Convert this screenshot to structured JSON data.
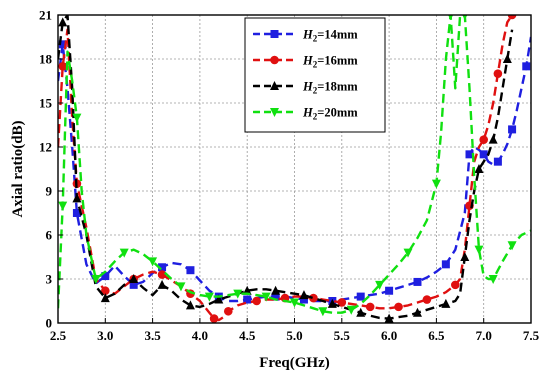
{
  "chart_data": {
    "type": "line",
    "xlabel": "Freq(GHz)",
    "ylabel": "Axial ratio(dB)",
    "xlim": [
      2.5,
      7.5
    ],
    "ylim": [
      0,
      21
    ],
    "xticks": [
      "2.5",
      "3.0",
      "3.5",
      "4.0",
      "4.5",
      "5.0",
      "5.5",
      "6.0",
      "6.5",
      "7.0",
      "7.5"
    ],
    "yticks": [
      "0",
      "3",
      "6",
      "9",
      "12",
      "15",
      "18",
      "21"
    ],
    "grid": true,
    "legend_position": "top-center",
    "series": [
      {
        "name_prefix": "H",
        "name_sub": "2",
        "name_suffix": "=14mm",
        "name": "H2=14mm",
        "color": "#1f1fe0",
        "marker": "square",
        "x": [
          2.5,
          2.55,
          2.6,
          2.65,
          2.7,
          2.8,
          2.9,
          3.0,
          3.1,
          3.2,
          3.3,
          3.4,
          3.5,
          3.6,
          3.7,
          3.8,
          3.9,
          4.0,
          4.1,
          4.2,
          4.3,
          4.4,
          4.5,
          4.6,
          4.7,
          4.8,
          4.9,
          5.0,
          5.1,
          5.2,
          5.3,
          5.4,
          5.5,
          5.6,
          5.7,
          5.8,
          5.9,
          6.0,
          6.1,
          6.2,
          6.3,
          6.4,
          6.5,
          6.6,
          6.7,
          6.8,
          6.85,
          6.9,
          6.95,
          7.0,
          7.05,
          7.1,
          7.15,
          7.2,
          7.25,
          7.3,
          7.35,
          7.4,
          7.45,
          7.5
        ],
        "y": [
          16.5,
          19,
          16,
          12,
          7.5,
          4,
          2.7,
          3.2,
          3.9,
          3.2,
          2.6,
          2.8,
          3.4,
          3.8,
          4.1,
          4.0,
          3.6,
          2.9,
          2.2,
          1.8,
          1.5,
          1.5,
          1.6,
          1.7,
          1.8,
          1.8,
          1.8,
          1.7,
          1.6,
          1.5,
          1.5,
          1.5,
          1.6,
          1.7,
          1.8,
          1.9,
          2.0,
          2.2,
          2.4,
          2.6,
          2.8,
          3.1,
          3.5,
          4.0,
          5.0,
          7.5,
          11.5,
          12.0,
          11.8,
          11.5,
          11.0,
          10.8,
          11.0,
          11.5,
          12.2,
          13.2,
          14.5,
          16.0,
          17.5,
          19.5
        ]
      },
      {
        "name_prefix": "H",
        "name_sub": "2",
        "name_suffix": "=16mm",
        "name": "H2=16mm",
        "color": "#e01010",
        "marker": "circle",
        "x": [
          2.5,
          2.55,
          2.6,
          2.65,
          2.7,
          2.8,
          2.9,
          3.0,
          3.1,
          3.2,
          3.3,
          3.4,
          3.5,
          3.6,
          3.7,
          3.8,
          3.9,
          4.0,
          4.1,
          4.15,
          4.2,
          4.25,
          4.3,
          4.4,
          4.5,
          4.6,
          4.7,
          4.8,
          4.9,
          5.0,
          5.1,
          5.2,
          5.3,
          5.4,
          5.5,
          5.6,
          5.7,
          5.8,
          5.9,
          6.0,
          6.1,
          6.2,
          6.3,
          6.4,
          6.5,
          6.6,
          6.7,
          6.75,
          6.8,
          6.85,
          6.9,
          6.95,
          7.0,
          7.05,
          7.1,
          7.15,
          7.2,
          7.25,
          7.3
        ],
        "y": [
          12.0,
          17.5,
          20.0,
          14.0,
          9.5,
          6.5,
          3.0,
          2.2,
          2.0,
          2.5,
          3.0,
          3.3,
          3.5,
          3.3,
          2.9,
          2.5,
          2.0,
          1.5,
          0.7,
          0.3,
          0.2,
          0.4,
          0.8,
          1.2,
          1.4,
          1.5,
          1.6,
          1.6,
          1.7,
          1.8,
          1.8,
          1.7,
          1.6,
          1.5,
          1.4,
          1.3,
          1.2,
          1.1,
          1.0,
          1.0,
          1.1,
          1.2,
          1.4,
          1.6,
          1.8,
          2.1,
          2.6,
          3.0,
          5.0,
          8.0,
          11.0,
          12.0,
          12.5,
          13.5,
          15.0,
          17.0,
          19.0,
          20.5,
          21.0
        ]
      },
      {
        "name_prefix": "H",
        "name_sub": "2",
        "name_suffix": "=18mm",
        "name": "H2=18mm",
        "color": "#000000",
        "marker": "triangle-up",
        "x": [
          2.5,
          2.55,
          2.6,
          2.65,
          2.7,
          2.8,
          2.9,
          3.0,
          3.1,
          3.2,
          3.3,
          3.4,
          3.5,
          3.6,
          3.7,
          3.8,
          3.9,
          4.0,
          4.1,
          4.2,
          4.3,
          4.4,
          4.5,
          4.6,
          4.7,
          4.8,
          4.9,
          5.0,
          5.1,
          5.2,
          5.3,
          5.4,
          5.5,
          5.6,
          5.7,
          5.8,
          5.9,
          6.0,
          6.1,
          6.2,
          6.3,
          6.4,
          6.5,
          6.6,
          6.7,
          6.75,
          6.8,
          6.85,
          6.9,
          6.95,
          7.0,
          7.05,
          7.1,
          7.15,
          7.2,
          7.25,
          7.3
        ],
        "y": [
          18.0,
          20.5,
          21.0,
          16.0,
          8.5,
          6.0,
          2.5,
          1.7,
          2.0,
          2.6,
          3.0,
          2.4,
          1.9,
          2.6,
          2.2,
          1.6,
          1.2,
          1.1,
          1.3,
          1.6,
          1.8,
          2.0,
          2.2,
          2.3,
          2.3,
          2.2,
          2.1,
          2.0,
          1.9,
          1.7,
          1.5,
          1.3,
          1.1,
          0.9,
          0.7,
          0.5,
          0.35,
          0.3,
          0.4,
          0.5,
          0.7,
          0.9,
          1.1,
          1.3,
          1.5,
          2.0,
          4.5,
          7.0,
          9.0,
          10.5,
          11.0,
          11.5,
          12.5,
          14.0,
          16.0,
          18.0,
          20.0
        ]
      },
      {
        "name_prefix": "H",
        "name_sub": "2",
        "name_suffix": "=20mm",
        "name": "H2=20mm",
        "color": "#10e010",
        "marker": "triangle-down",
        "x": [
          2.5,
          2.55,
          2.6,
          2.65,
          2.7,
          2.75,
          2.8,
          2.9,
          3.0,
          3.1,
          3.2,
          3.3,
          3.4,
          3.5,
          3.6,
          3.7,
          3.8,
          3.9,
          4.0,
          4.1,
          4.2,
          4.3,
          4.4,
          4.5,
          4.6,
          4.7,
          4.8,
          4.9,
          5.0,
          5.1,
          5.2,
          5.3,
          5.4,
          5.5,
          5.6,
          5.7,
          5.8,
          5.9,
          6.0,
          6.1,
          6.2,
          6.3,
          6.4,
          6.5,
          6.55,
          6.6,
          6.65,
          6.7,
          6.75,
          6.8,
          6.85,
          6.9,
          6.95,
          7.0,
          7.05,
          7.1,
          7.15,
          7.2,
          7.3,
          7.4,
          7.5
        ],
        "y": [
          1.0,
          8.0,
          18.5,
          16.5,
          14.0,
          9.0,
          6.0,
          3.0,
          3.5,
          4.2,
          4.8,
          5.0,
          4.7,
          4.2,
          3.6,
          3.0,
          2.5,
          2.1,
          1.9,
          1.8,
          1.8,
          1.9,
          2.0,
          2.0,
          1.9,
          1.8,
          1.6,
          1.5,
          1.4,
          1.2,
          1.0,
          0.8,
          0.7,
          0.7,
          0.9,
          1.3,
          1.9,
          2.6,
          3.3,
          4.0,
          4.8,
          5.8,
          7.0,
          9.5,
          13.0,
          18.0,
          21.0,
          16.0,
          21.0,
          21.0,
          16.0,
          10.0,
          5.0,
          3.2,
          3.0,
          3.0,
          3.6,
          4.2,
          5.3,
          6.0,
          6.3
        ]
      }
    ]
  }
}
